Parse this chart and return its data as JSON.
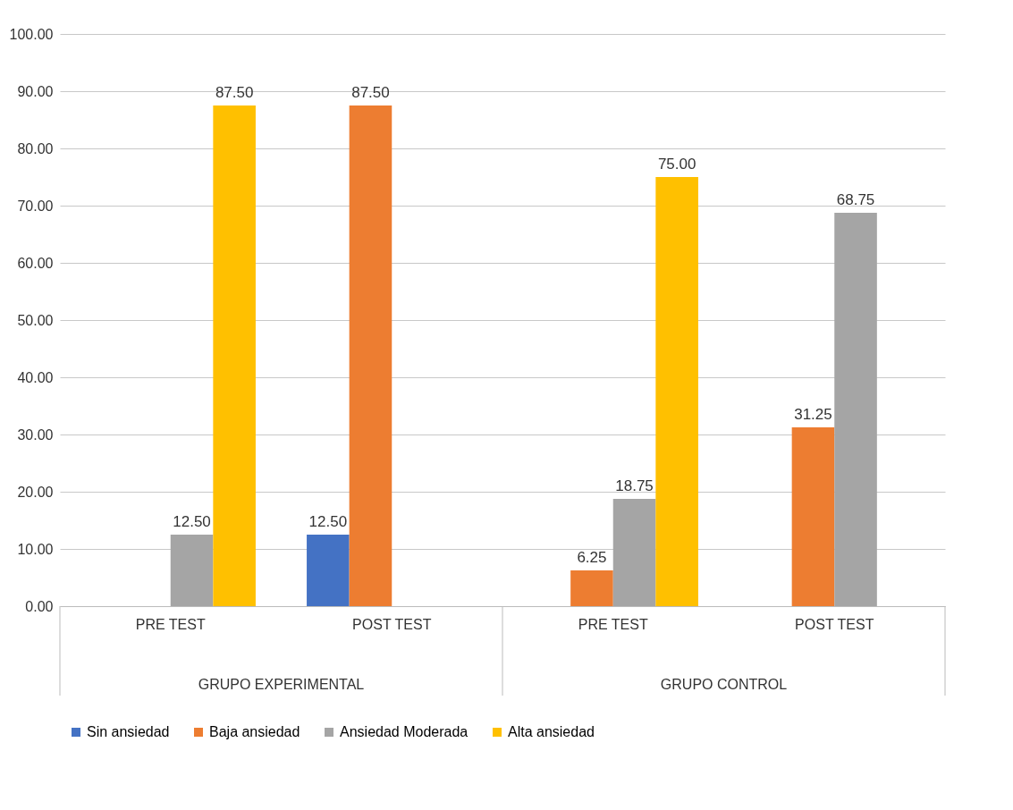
{
  "chart_data": {
    "type": "bar",
    "categories": [
      "PRE TEST",
      "POST TEST",
      "PRE TEST",
      "POST TEST"
    ],
    "series": [
      {
        "name": "Sin ansiedad",
        "color": "#4472c4",
        "values": [
          null,
          12.5,
          null,
          null
        ],
        "value_labels": [
          null,
          "12.50",
          null,
          null
        ]
      },
      {
        "name": "Baja ansiedad",
        "color": "#ed7d31",
        "values": [
          null,
          87.5,
          6.25,
          31.25
        ],
        "value_labels": [
          null,
          "87.50",
          "6.25",
          "31.25"
        ]
      },
      {
        "name": "Ansiedad Moderada",
        "color": "#a5a5a5",
        "values": [
          12.5,
          null,
          18.75,
          68.75
        ],
        "value_labels": [
          "12.50",
          null,
          "18.75",
          "68.75"
        ]
      },
      {
        "name": "Alta ansiedad",
        "color": "#ffc000",
        "values": [
          87.5,
          null,
          75,
          null
        ],
        "value_labels": [
          "87.50",
          null,
          "75.00",
          null
        ]
      }
    ],
    "annotations": [
      "GRUPO EXPERIMENTAL",
      "GRUPO CONTROL"
    ],
    "ylim": [
      0,
      100
    ],
    "yticks": [
      {
        "value": 0,
        "label": "0.00"
      },
      {
        "value": 10,
        "label": "10.00"
      },
      {
        "value": 20,
        "label": "20.00"
      },
      {
        "value": 30,
        "label": "30.00"
      },
      {
        "value": 40,
        "label": "40.00"
      },
      {
        "value": 50,
        "label": "50.00"
      },
      {
        "value": 60,
        "label": "60.00"
      },
      {
        "value": 70,
        "label": "70.00"
      },
      {
        "value": 80,
        "label": "80.00"
      },
      {
        "value": 90,
        "label": "90.00"
      },
      {
        "value": 100,
        "label": "100.00"
      }
    ],
    "grid": "y",
    "legend": "bottom"
  }
}
